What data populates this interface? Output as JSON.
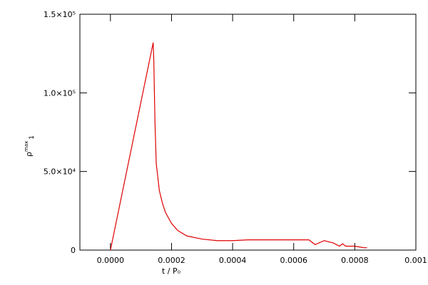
{
  "chart_data": {
    "type": "line",
    "xlabel": "t / P₀",
    "ylabel": {
      "symbol": "ρ",
      "sup": "max",
      "sub": "1"
    },
    "x": [
      0,
      0.00014,
      0.000142,
      0.000146,
      0.00015,
      0.00016,
      0.00017,
      0.00018,
      0.0002,
      0.00022,
      0.00025,
      0.0003,
      0.00035,
      0.0004,
      0.00045,
      0.0005,
      0.0006,
      0.00065,
      0.00067,
      0.0007,
      0.00073,
      0.00075,
      0.00076,
      0.00077,
      0.0008,
      0.00083,
      0.00084
    ],
    "values": [
      0,
      132000,
      120000,
      80000,
      55000,
      38000,
      30000,
      24000,
      17000,
      12500,
      9000,
      7000,
      6000,
      6000,
      6500,
      6500,
      6500,
      6500,
      3500,
      6000,
      4500,
      2500,
      4000,
      2500,
      2500,
      1500,
      1500
    ],
    "color": "#e00000",
    "xlim": [
      -0.0001,
      0.001
    ],
    "xticks": [
      {
        "value": 0,
        "label": "0.0000"
      },
      0.0002,
      0.0004,
      0.0006,
      0.0008,
      0.001
    ],
    "ylim": [
      0,
      150000
    ],
    "yticks": [
      0,
      {
        "value": 50000,
        "label": "5.0×10⁴"
      },
      {
        "value": 100000,
        "label": "1.0×10⁵"
      },
      {
        "value": 150000,
        "label": "1.5×10⁵"
      }
    ]
  }
}
